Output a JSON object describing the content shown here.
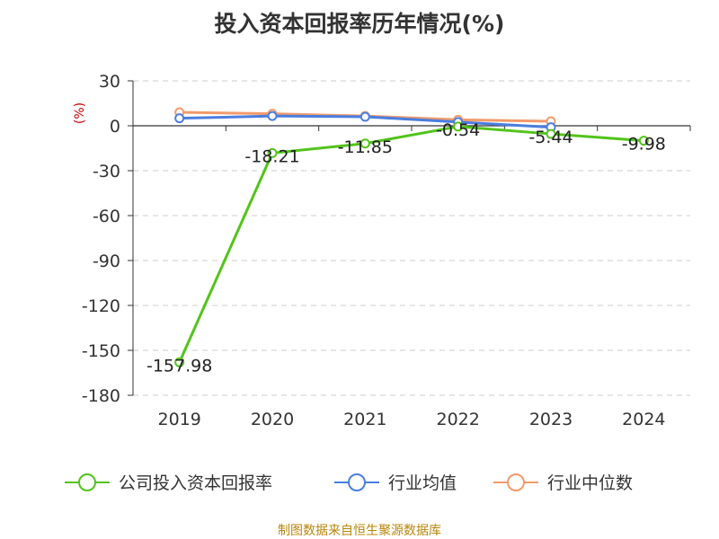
{
  "chart_data": {
    "type": "line",
    "title": "投入资本回报率历年情况(%)",
    "ylabel": "(%)",
    "categories": [
      "2019",
      "2020",
      "2021",
      "2022",
      "2023",
      "2024"
    ],
    "yticks": [
      "30",
      "0",
      "-30",
      "-60",
      "-90",
      "-120",
      "-150",
      "-180"
    ],
    "ylim": [
      -180,
      30
    ],
    "grid": true,
    "legend_position": "bottom",
    "series": [
      {
        "name": "公司投入资本回报率",
        "color": "#52c41a",
        "values": [
          -157.98,
          -18.21,
          -11.85,
          -0.54,
          -5.44,
          -9.98
        ],
        "labels": [
          "-157.98",
          "-18.21",
          "-11.85",
          "-0.54",
          "-5.44",
          "-9.98"
        ]
      },
      {
        "name": "行业均值",
        "color": "#4a7ee0",
        "values": [
          5,
          6.5,
          6,
          2.5,
          -1,
          null
        ]
      },
      {
        "name": "行业中位数",
        "color": "#f39a6b",
        "values": [
          9,
          8,
          6.5,
          4,
          3,
          null
        ]
      }
    ],
    "source": "制图数据来自恒生聚源数据库"
  }
}
